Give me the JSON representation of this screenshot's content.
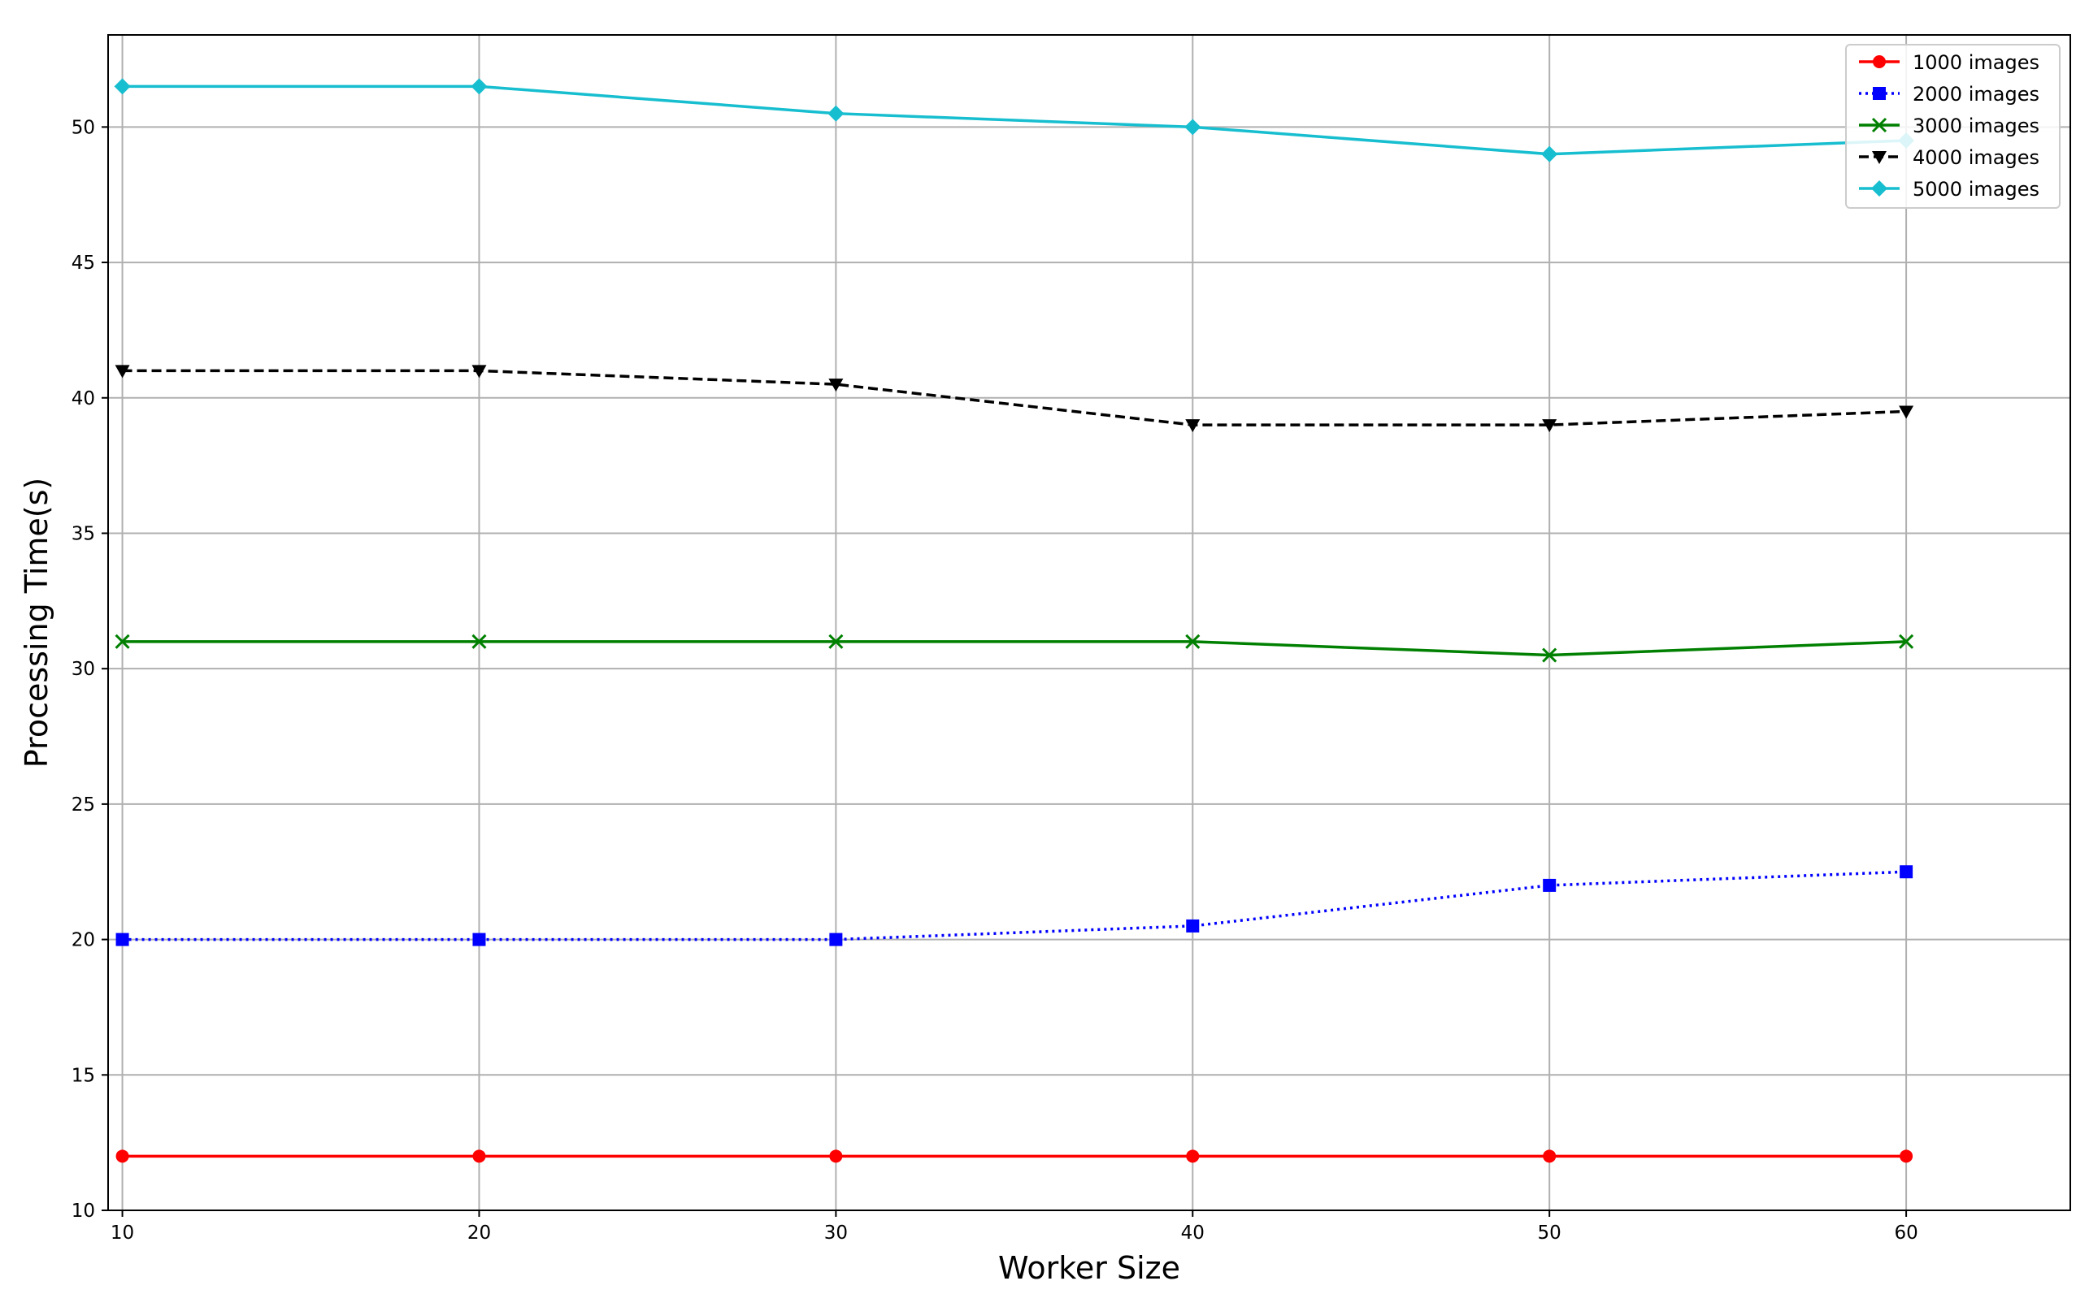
{
  "chart_data": {
    "type": "line",
    "title": "",
    "xlabel": "Worker Size",
    "ylabel": "Processing Time(s)",
    "x": [
      10,
      20,
      30,
      40,
      50,
      60
    ],
    "xlim": [
      9.6,
      64.6
    ],
    "ylim": [
      10,
      53.4
    ],
    "xticks": [
      10,
      20,
      30,
      40,
      50,
      60
    ],
    "yticks": [
      10,
      15,
      20,
      25,
      30,
      35,
      40,
      45,
      50
    ],
    "grid": true,
    "legend_position": "top-right",
    "series": [
      {
        "name": "1000 images",
        "values": [
          12,
          12,
          12,
          12,
          12,
          12
        ],
        "color": "#ff0000",
        "line_style": "solid",
        "marker": "circle"
      },
      {
        "name": "2000 images",
        "values": [
          20,
          20,
          20,
          20.5,
          22,
          22.5
        ],
        "color": "#0000ff",
        "line_style": "dotted",
        "marker": "square"
      },
      {
        "name": "3000 images",
        "values": [
          31,
          31,
          31,
          31,
          30.5,
          31
        ],
        "color": "#008000",
        "line_style": "solid",
        "marker": "x"
      },
      {
        "name": "4000 images",
        "values": [
          41,
          41,
          40.5,
          39,
          39,
          39.5
        ],
        "color": "#000000",
        "line_style": "dashed",
        "marker": "triangle-down"
      },
      {
        "name": "5000 images",
        "values": [
          51.5,
          51.5,
          50.5,
          50,
          49,
          49.5
        ],
        "color": "#17becf",
        "line_style": "solid",
        "marker": "diamond"
      }
    ]
  }
}
